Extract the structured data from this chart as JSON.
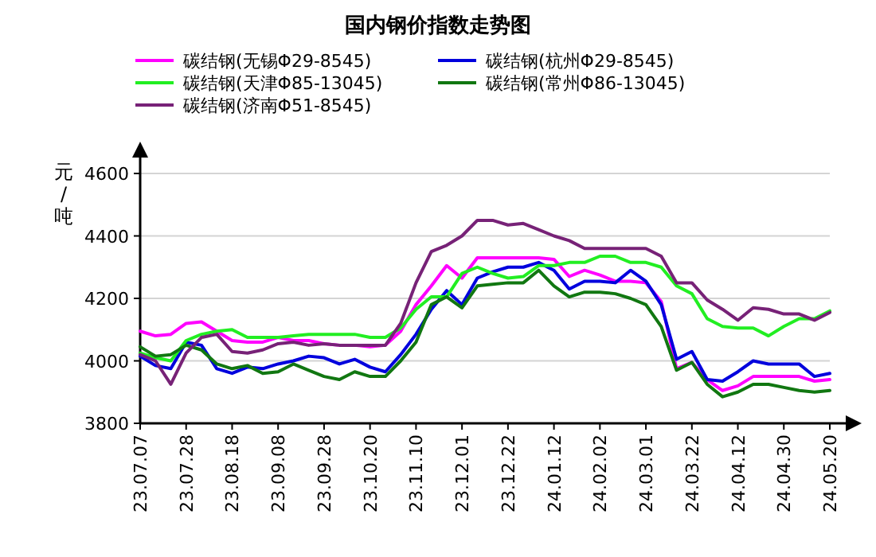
{
  "chart_data": {
    "type": "line",
    "title": "国内钢价指数走势图",
    "ylabel": "元/吨",
    "categories": [
      "23.07.07",
      null,
      null,
      "23.07.28",
      null,
      null,
      "23.08.18",
      null,
      null,
      "23.09.08",
      null,
      null,
      "23.09.28",
      null,
      null,
      "23.10.20",
      null,
      null,
      "23.11.10",
      null,
      null,
      "23.12.01",
      null,
      null,
      "23.12.22",
      null,
      null,
      "24.01.12",
      null,
      null,
      "24.02.02",
      null,
      null,
      "24.03.01",
      null,
      null,
      "24.03.22",
      null,
      null,
      "24.04.12",
      null,
      null,
      "24.04.30",
      null,
      null,
      "24.05.20"
    ],
    "series": [
      {
        "name": "碳结钢(无锡Φ29-8545)",
        "color": "#ff00ff",
        "values": [
          4095,
          4080,
          4085,
          4120,
          4125,
          4095,
          4065,
          4060,
          4060,
          4075,
          4065,
          4065,
          4055,
          4050,
          4050,
          4045,
          4050,
          4095,
          4180,
          4240,
          4305,
          4265,
          4330,
          4330,
          4330,
          4330,
          4330,
          4325,
          4270,
          4290,
          4275,
          4255,
          4255,
          4250,
          4190,
          3975,
          3995,
          3940,
          3905,
          3920,
          3950,
          3950,
          3950,
          3950,
          3935,
          3940
        ]
      },
      {
        "name": "碳结钢(杭州Φ29-8545)",
        "color": "#0000dd",
        "values": [
          4015,
          3985,
          3975,
          4060,
          4050,
          3975,
          3960,
          3980,
          3975,
          3990,
          4000,
          4015,
          4010,
          3990,
          4005,
          3980,
          3965,
          4020,
          4085,
          4165,
          4225,
          4180,
          4265,
          4285,
          4300,
          4300,
          4315,
          4290,
          4230,
          4255,
          4255,
          4250,
          4290,
          4255,
          4180,
          4005,
          4030,
          3940,
          3935,
          3965,
          4000,
          3990,
          3990,
          3990,
          3950,
          3960
        ]
      },
      {
        "name": "碳结钢(天津Φ85-13045)",
        "color": "#22ee22",
        "values": [
          4025,
          4010,
          4000,
          4065,
          4085,
          4095,
          4100,
          4075,
          4075,
          4075,
          4080,
          4085,
          4085,
          4085,
          4085,
          4075,
          4075,
          4105,
          4165,
          4205,
          4205,
          4280,
          4300,
          4280,
          4265,
          4270,
          4305,
          4305,
          4315,
          4315,
          4335,
          4335,
          4315,
          4315,
          4300,
          4240,
          4215,
          4135,
          4110,
          4105,
          4105,
          4080,
          4110,
          4135,
          4135,
          4160
        ]
      },
      {
        "name": "碳结钢(常州Φ86-13045)",
        "color": "#117711",
        "values": [
          4045,
          4015,
          4020,
          4050,
          4035,
          3990,
          3975,
          3985,
          3960,
          3965,
          3990,
          3970,
          3950,
          3940,
          3965,
          3950,
          3950,
          4000,
          4060,
          4180,
          4205,
          4170,
          4240,
          4245,
          4250,
          4250,
          4290,
          4240,
          4205,
          4220,
          4220,
          4215,
          4200,
          4180,
          4110,
          3970,
          3995,
          3925,
          3885,
          3900,
          3925,
          3925,
          3915,
          3905,
          3900,
          3905
        ]
      },
      {
        "name": "碳结钢(济南Φ51-8545)",
        "color": "#772277",
        "values": [
          4020,
          4000,
          3925,
          4025,
          4075,
          4085,
          4030,
          4025,
          4035,
          4055,
          4060,
          4050,
          4055,
          4050,
          4050,
          4050,
          4050,
          4120,
          4250,
          4350,
          4370,
          4400,
          4450,
          4450,
          4435,
          4440,
          4420,
          4400,
          4385,
          4360,
          4360,
          4360,
          4360,
          4360,
          4335,
          4250,
          4250,
          4195,
          4165,
          4130,
          4170,
          4165,
          4150,
          4150,
          4130,
          4155
        ]
      }
    ],
    "ylim": [
      3800,
      4600
    ],
    "yticks": [
      3800,
      4000,
      4200,
      4400,
      4600
    ],
    "grid": "y",
    "legend": "top",
    "marker": "none",
    "line_style": "solid"
  }
}
